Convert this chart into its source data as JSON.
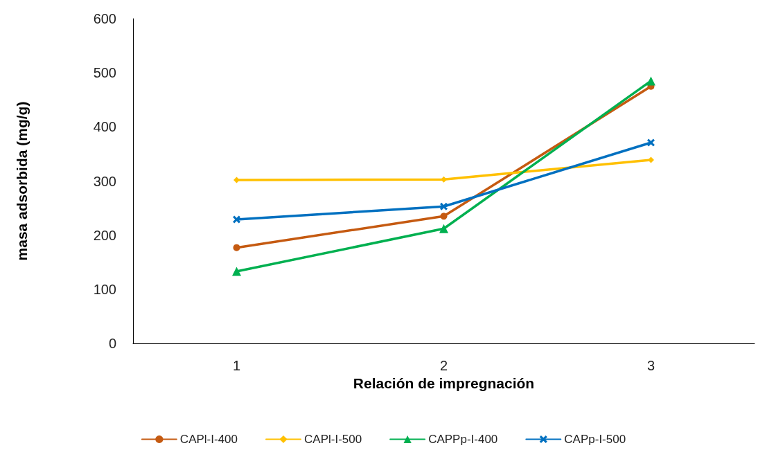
{
  "chart_data": {
    "type": "line",
    "xlabel": "Relación de impregnación",
    "ylabel": "masa adsorbida (mg/g)",
    "categories": [
      "1",
      "2",
      "3"
    ],
    "series": [
      {
        "name": "CAPl-I-400",
        "color": "#c55a11",
        "marker": "circle",
        "values": [
          177,
          235,
          475
        ]
      },
      {
        "name": "CAPl-I-500",
        "color": "#ffc000",
        "marker": "diamond",
        "values": [
          302,
          303,
          339
        ]
      },
      {
        "name": "CAPPp-I-400",
        "color": "#00b050",
        "marker": "triangle",
        "values": [
          133,
          212,
          485
        ]
      },
      {
        "name": "CAPp-I-500",
        "color": "#0070c0",
        "marker": "cross",
        "values": [
          229,
          253,
          371
        ]
      }
    ],
    "ylim": [
      0,
      600
    ],
    "yticks": [
      0,
      100,
      200,
      300,
      400,
      500,
      600
    ],
    "grid": false,
    "legend": "bottom",
    "line_style": "solid"
  }
}
